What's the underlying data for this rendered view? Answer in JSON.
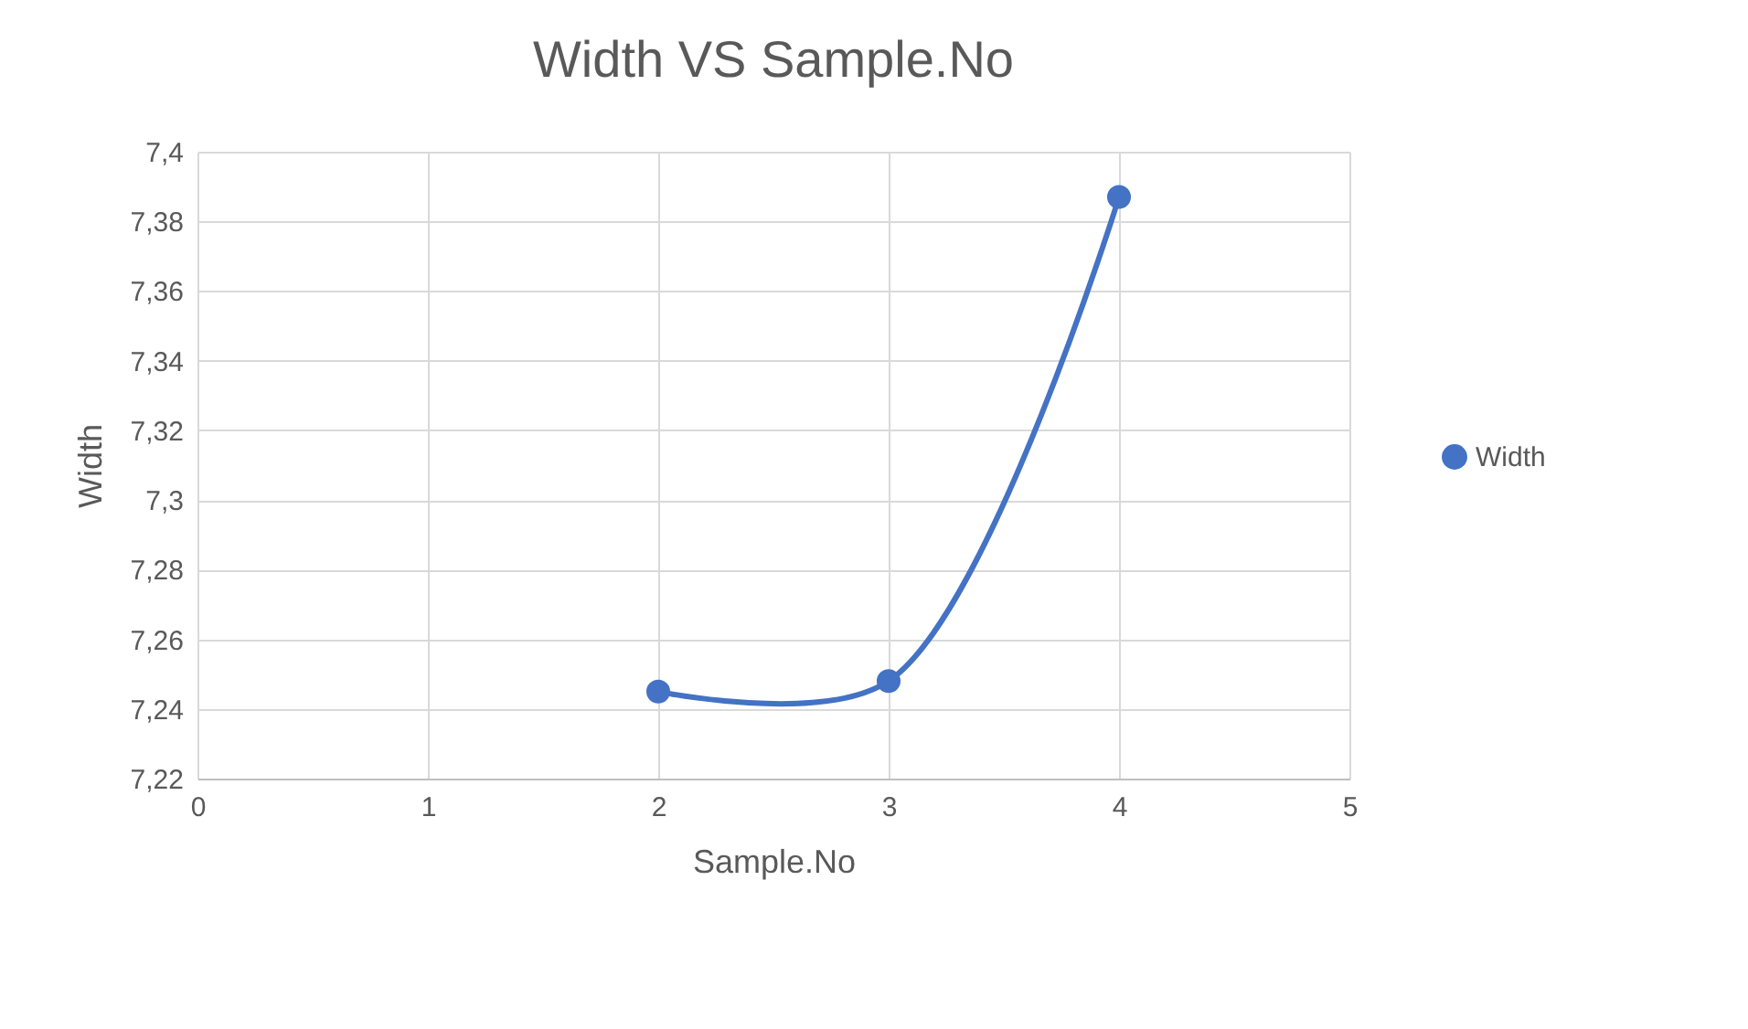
{
  "chart_data": {
    "type": "line",
    "title": "Width VS Sample.No",
    "xlabel": "Sample.No",
    "ylabel": "Width",
    "x": [
      2,
      3,
      4
    ],
    "series": [
      {
        "name": "Width",
        "color": "#4472c4",
        "values": [
          7.245,
          7.248,
          7.387
        ]
      }
    ],
    "xlim": [
      0,
      5
    ],
    "xticks": [
      0,
      1,
      2,
      3,
      4,
      5
    ],
    "ylim": [
      7.22,
      7.4
    ],
    "yticks": [
      {
        "value": 7.22,
        "label": "7,22"
      },
      {
        "value": 7.24,
        "label": "7,24"
      },
      {
        "value": 7.26,
        "label": "7,26"
      },
      {
        "value": 7.28,
        "label": "7,28"
      },
      {
        "value": 7.3,
        "label": "7,3"
      },
      {
        "value": 7.32,
        "label": "7,32"
      },
      {
        "value": 7.34,
        "label": "7,34"
      },
      {
        "value": 7.36,
        "label": "7,36"
      },
      {
        "value": 7.38,
        "label": "7,38"
      },
      {
        "value": 7.4,
        "label": "7,4"
      }
    ],
    "grid": true,
    "legend": "right",
    "marker": "circle",
    "line_style": "solid"
  }
}
